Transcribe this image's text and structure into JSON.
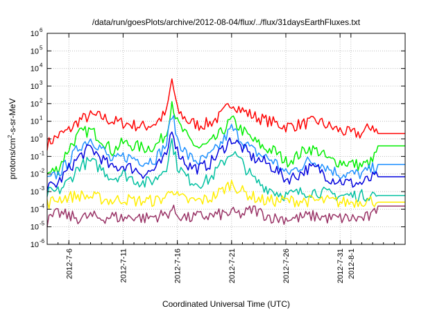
{
  "chart_data": {
    "type": "line",
    "title": "/data/run/goesPlots/archive/2012-08-04/flux/../flux/31daysEarthFluxes.txt",
    "xlabel": "Coordinated Universal Time (UTC)",
    "ylabel": {
      "pre": "protons/cm",
      "sup": "2",
      "post": "-s-sr-MeV"
    },
    "y_scale": "log",
    "ylim": [
      1e-06,
      1000000.0
    ],
    "y_ticks": [
      {
        "value": 1e-06,
        "base": "10",
        "exp": "-6"
      },
      {
        "value": 1e-05,
        "base": "10",
        "exp": "-5"
      },
      {
        "value": 0.0001,
        "base": "10",
        "exp": "-4"
      },
      {
        "value": 0.001,
        "base": "10",
        "exp": "-3"
      },
      {
        "value": 0.01,
        "base": "10",
        "exp": "-2"
      },
      {
        "value": 0.1,
        "base": "10",
        "exp": "-1"
      },
      {
        "value": 1,
        "base": "10",
        "exp": "0"
      },
      {
        "value": 10,
        "base": "10",
        "exp": "1"
      },
      {
        "value": 100,
        "base": "10",
        "exp": "2"
      },
      {
        "value": 1000,
        "base": "10",
        "exp": "3"
      },
      {
        "value": 10000,
        "base": "10",
        "exp": "4"
      },
      {
        "value": 100000,
        "base": "10",
        "exp": "5"
      },
      {
        "value": 1000000,
        "base": "10",
        "exp": "6"
      }
    ],
    "xlim": [
      "2012-07-04",
      "2012-08-06"
    ],
    "x_ticks": [
      "2012-7-6",
      "2012-7-11",
      "2012-7-16",
      "2012-7-21",
      "2012-7-26",
      "2012-7-31",
      "2012-8-1"
    ],
    "grid": true,
    "series": [
      {
        "color": "#ff0000",
        "points": [
          [
            "2012-07-04",
            0.5
          ],
          [
            "2012-07-05",
            1.5
          ],
          [
            "2012-07-06",
            3
          ],
          [
            "2012-07-07",
            12
          ],
          [
            "2012-07-08",
            20
          ],
          [
            "2012-07-09",
            18
          ],
          [
            "2012-07-10",
            10
          ],
          [
            "2012-07-11",
            8
          ],
          [
            "2012-07-12",
            6
          ],
          [
            "2012-07-13",
            5
          ],
          [
            "2012-07-14",
            8
          ],
          [
            "2012-07-15",
            30
          ],
          [
            "2012-07-15 12:00",
            2500
          ],
          [
            "2012-07-16",
            40
          ],
          [
            "2012-07-17",
            10
          ],
          [
            "2012-07-18",
            6
          ],
          [
            "2012-07-19",
            8
          ],
          [
            "2012-07-20",
            20
          ],
          [
            "2012-07-21",
            120
          ],
          [
            "2012-07-22",
            40
          ],
          [
            "2012-07-23",
            20
          ],
          [
            "2012-07-24",
            12
          ],
          [
            "2012-07-25",
            8
          ],
          [
            "2012-07-26",
            5
          ],
          [
            "2012-07-27",
            6
          ],
          [
            "2012-07-28",
            8
          ],
          [
            "2012-07-29",
            10
          ],
          [
            "2012-07-30",
            5
          ],
          [
            "2012-07-31",
            3
          ],
          [
            "2012-08-01",
            2
          ],
          [
            "2012-08-02",
            2
          ],
          [
            "2012-08-03",
            6
          ],
          [
            "2012-08-03 12:00",
            2
          ],
          [
            "2012-08-06",
            2
          ]
        ]
      },
      {
        "color": "#00ee00",
        "points": [
          [
            "2012-07-04",
            0.01
          ],
          [
            "2012-07-05",
            0.02
          ],
          [
            "2012-07-06",
            0.3
          ],
          [
            "2012-07-07",
            2
          ],
          [
            "2012-07-08",
            3
          ],
          [
            "2012-07-09",
            1
          ],
          [
            "2012-07-10",
            0.2
          ],
          [
            "2012-07-11",
            0.6
          ],
          [
            "2012-07-12",
            0.4
          ],
          [
            "2012-07-13",
            0.3
          ],
          [
            "2012-07-14",
            0.4
          ],
          [
            "2012-07-15",
            2
          ],
          [
            "2012-07-15 12:00",
            150
          ],
          [
            "2012-07-16",
            8
          ],
          [
            "2012-07-17",
            1
          ],
          [
            "2012-07-18",
            0.3
          ],
          [
            "2012-07-19",
            0.5
          ],
          [
            "2012-07-20",
            2
          ],
          [
            "2012-07-21",
            12
          ],
          [
            "2012-07-22",
            3
          ],
          [
            "2012-07-23",
            0.8
          ],
          [
            "2012-07-24",
            0.3
          ],
          [
            "2012-07-25",
            0.2
          ],
          [
            "2012-07-26",
            0.05
          ],
          [
            "2012-07-27",
            0.1
          ],
          [
            "2012-07-28",
            0.3
          ],
          [
            "2012-07-29",
            0.2
          ],
          [
            "2012-07-30",
            0.06
          ],
          [
            "2012-07-31",
            0.05
          ],
          [
            "2012-08-01",
            0.04
          ],
          [
            "2012-08-02",
            0.03
          ],
          [
            "2012-08-03",
            0.05
          ],
          [
            "2012-08-03 12:00",
            0.4
          ],
          [
            "2012-08-06",
            0.4
          ]
        ]
      },
      {
        "color": "#1e90ff",
        "points": [
          [
            "2012-07-04",
            0.004
          ],
          [
            "2012-07-05",
            0.01
          ],
          [
            "2012-07-06",
            0.05
          ],
          [
            "2012-07-07",
            0.4
          ],
          [
            "2012-07-08",
            1
          ],
          [
            "2012-07-09",
            0.3
          ],
          [
            "2012-07-10",
            0.05
          ],
          [
            "2012-07-11",
            0.1
          ],
          [
            "2012-07-12",
            0.08
          ],
          [
            "2012-07-13",
            0.05
          ],
          [
            "2012-07-14",
            0.08
          ],
          [
            "2012-07-15",
            0.5
          ],
          [
            "2012-07-15 12:00",
            30
          ],
          [
            "2012-07-16",
            1
          ],
          [
            "2012-07-17",
            0.1
          ],
          [
            "2012-07-18",
            0.05
          ],
          [
            "2012-07-19",
            0.1
          ],
          [
            "2012-07-20",
            0.5
          ],
          [
            "2012-07-21",
            4
          ],
          [
            "2012-07-22",
            0.8
          ],
          [
            "2012-07-23",
            0.2
          ],
          [
            "2012-07-24",
            0.1
          ],
          [
            "2012-07-25",
            0.05
          ],
          [
            "2012-07-26",
            0.01
          ],
          [
            "2012-07-27",
            0.02
          ],
          [
            "2012-07-28",
            0.05
          ],
          [
            "2012-07-29",
            0.05
          ],
          [
            "2012-07-30",
            0.02
          ],
          [
            "2012-07-31",
            0.01
          ],
          [
            "2012-08-01",
            0.01
          ],
          [
            "2012-08-02",
            0.01
          ],
          [
            "2012-08-03",
            0.02
          ],
          [
            "2012-08-03 12:00",
            0.035
          ],
          [
            "2012-08-06",
            0.035
          ]
        ]
      },
      {
        "color": "#0000dd",
        "points": [
          [
            "2012-07-04",
            0.0015
          ],
          [
            "2012-07-05",
            0.003
          ],
          [
            "2012-07-06",
            0.02
          ],
          [
            "2012-07-07",
            0.1
          ],
          [
            "2012-07-08",
            0.3
          ],
          [
            "2012-07-09",
            0.08
          ],
          [
            "2012-07-10",
            0.02
          ],
          [
            "2012-07-11",
            0.03
          ],
          [
            "2012-07-12",
            0.02
          ],
          [
            "2012-07-13",
            0.01
          ],
          [
            "2012-07-14",
            0.02
          ],
          [
            "2012-07-15",
            0.1
          ],
          [
            "2012-07-15 12:00",
            5
          ],
          [
            "2012-07-16",
            0.2
          ],
          [
            "2012-07-17",
            0.03
          ],
          [
            "2012-07-18",
            0.02
          ],
          [
            "2012-07-19",
            0.04
          ],
          [
            "2012-07-20",
            0.2
          ],
          [
            "2012-07-21",
            1
          ],
          [
            "2012-07-22",
            0.3
          ],
          [
            "2012-07-23",
            0.08
          ],
          [
            "2012-07-24",
            0.05
          ],
          [
            "2012-07-25",
            0.02
          ],
          [
            "2012-07-26",
            0.005
          ],
          [
            "2012-07-27",
            0.008
          ],
          [
            "2012-07-28",
            0.02
          ],
          [
            "2012-07-29",
            0.02
          ],
          [
            "2012-07-30",
            0.006
          ],
          [
            "2012-07-31",
            0.004
          ],
          [
            "2012-08-01",
            0.003
          ],
          [
            "2012-08-02",
            0.003
          ],
          [
            "2012-08-03",
            0.006
          ],
          [
            "2012-08-03 12:00",
            0.007
          ],
          [
            "2012-08-06",
            0.007
          ]
        ]
      },
      {
        "color": "#00c0a0",
        "points": [
          [
            "2012-07-04",
            0.0008
          ],
          [
            "2012-07-05",
            0.001
          ],
          [
            "2012-07-06",
            0.004
          ],
          [
            "2012-07-07",
            0.03
          ],
          [
            "2012-07-08",
            0.05
          ],
          [
            "2012-07-09",
            0.02
          ],
          [
            "2012-07-10",
            0.006
          ],
          [
            "2012-07-11",
            0.01
          ],
          [
            "2012-07-12",
            0.005
          ],
          [
            "2012-07-13",
            0.003
          ],
          [
            "2012-07-14",
            0.005
          ],
          [
            "2012-07-15",
            0.03
          ],
          [
            "2012-07-15 12:00",
            0.8
          ],
          [
            "2012-07-16",
            0.03
          ],
          [
            "2012-07-17",
            0.005
          ],
          [
            "2012-07-18",
            0.003
          ],
          [
            "2012-07-19",
            0.005
          ],
          [
            "2012-07-20",
            0.03
          ],
          [
            "2012-07-21",
            0.2
          ],
          [
            "2012-07-22",
            0.04
          ],
          [
            "2012-07-23",
            0.005
          ],
          [
            "2012-07-24",
            0.002
          ],
          [
            "2012-07-25",
            0.001
          ],
          [
            "2012-07-26",
            0.0006
          ],
          [
            "2012-07-27",
            0.0008
          ],
          [
            "2012-07-28",
            0.001
          ],
          [
            "2012-07-29",
            0.001
          ],
          [
            "2012-07-30",
            0.0007
          ],
          [
            "2012-07-31",
            0.0006
          ],
          [
            "2012-08-01",
            0.0006
          ],
          [
            "2012-08-02",
            0.0006
          ],
          [
            "2012-08-03",
            0.0007
          ],
          [
            "2012-08-03 12:00",
            0.0006
          ],
          [
            "2012-08-06",
            0.0006
          ]
        ]
      },
      {
        "color": "#ffee00",
        "points": [
          [
            "2012-07-04",
            0.0002
          ],
          [
            "2012-07-05",
            0.0004
          ],
          [
            "2012-07-06",
            0.0005
          ],
          [
            "2012-07-07",
            0.0006
          ],
          [
            "2012-07-08",
            0.0005
          ],
          [
            "2012-07-09",
            0.0004
          ],
          [
            "2012-07-10",
            0.0003
          ],
          [
            "2012-07-11",
            0.0004
          ],
          [
            "2012-07-12",
            0.0003
          ],
          [
            "2012-07-13",
            0.0003
          ],
          [
            "2012-07-14",
            0.0003
          ],
          [
            "2012-07-15",
            0.0005
          ],
          [
            "2012-07-15 12:00",
            0.002
          ],
          [
            "2012-07-16",
            0.0005
          ],
          [
            "2012-07-17",
            0.0003
          ],
          [
            "2012-07-18",
            0.0003
          ],
          [
            "2012-07-19",
            0.0004
          ],
          [
            "2012-07-20",
            0.001
          ],
          [
            "2012-07-21",
            0.003
          ],
          [
            "2012-07-22",
            0.001
          ],
          [
            "2012-07-23",
            0.0005
          ],
          [
            "2012-07-24",
            0.0003
          ],
          [
            "2012-07-25",
            0.0003
          ],
          [
            "2012-07-26",
            0.0003
          ],
          [
            "2012-07-27",
            0.0003
          ],
          [
            "2012-07-28",
            0.0003
          ],
          [
            "2012-07-29",
            0.0003
          ],
          [
            "2012-07-30",
            0.0003
          ],
          [
            "2012-07-31",
            0.00025
          ],
          [
            "2012-08-01",
            0.00025
          ],
          [
            "2012-08-02",
            0.0003
          ],
          [
            "2012-08-03",
            0.0003
          ],
          [
            "2012-08-03 12:00",
            0.00025
          ],
          [
            "2012-08-06",
            0.00025
          ]
        ]
      },
      {
        "color": "#993366",
        "points": [
          [
            "2012-07-04",
            2e-05
          ],
          [
            "2012-07-05",
            6e-05
          ],
          [
            "2012-07-06",
            4e-05
          ],
          [
            "2012-07-07",
            3e-05
          ],
          [
            "2012-07-08",
            4e-05
          ],
          [
            "2012-07-09",
            3e-05
          ],
          [
            "2012-07-10",
            4e-05
          ],
          [
            "2012-07-11",
            3e-05
          ],
          [
            "2012-07-12",
            4e-05
          ],
          [
            "2012-07-13",
            3e-05
          ],
          [
            "2012-07-14",
            4e-05
          ],
          [
            "2012-07-15",
            5e-05
          ],
          [
            "2012-07-15 12:00",
            0.0001
          ],
          [
            "2012-07-16",
            5e-05
          ],
          [
            "2012-07-17",
            3e-05
          ],
          [
            "2012-07-18",
            4e-05
          ],
          [
            "2012-07-19",
            4e-05
          ],
          [
            "2012-07-20",
            5e-05
          ],
          [
            "2012-07-21",
            6e-05
          ],
          [
            "2012-07-22",
            5e-05
          ],
          [
            "2012-07-23",
            0.0001
          ],
          [
            "2012-07-24",
            5e-05
          ],
          [
            "2012-07-25",
            3e-05
          ],
          [
            "2012-07-26",
            3e-05
          ],
          [
            "2012-07-27",
            3e-05
          ],
          [
            "2012-07-28",
            4e-05
          ],
          [
            "2012-07-29",
            4e-05
          ],
          [
            "2012-07-30",
            3e-05
          ],
          [
            "2012-07-31",
            3e-05
          ],
          [
            "2012-08-01",
            3e-05
          ],
          [
            "2012-08-02",
            3e-05
          ],
          [
            "2012-08-03",
            4e-05
          ],
          [
            "2012-08-03 12:00",
            0.00015
          ],
          [
            "2012-08-06",
            0.00015
          ]
        ]
      }
    ]
  }
}
